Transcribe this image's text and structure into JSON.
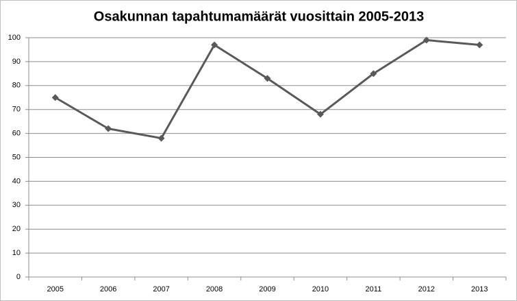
{
  "chart_data": {
    "type": "line",
    "title": "Osakunnan tapahtumamäärät vuosittain 2005-2013",
    "categories": [
      "2005",
      "2006",
      "2007",
      "2008",
      "2009",
      "2010",
      "2011",
      "2012",
      "2013"
    ],
    "values": [
      75,
      62,
      58,
      97,
      83,
      68,
      85,
      99,
      97
    ],
    "color": "#595959",
    "ylim": [
      0,
      100
    ],
    "yticks": [
      0,
      10,
      20,
      30,
      40,
      50,
      60,
      70,
      80,
      90,
      100
    ],
    "grid": true
  }
}
